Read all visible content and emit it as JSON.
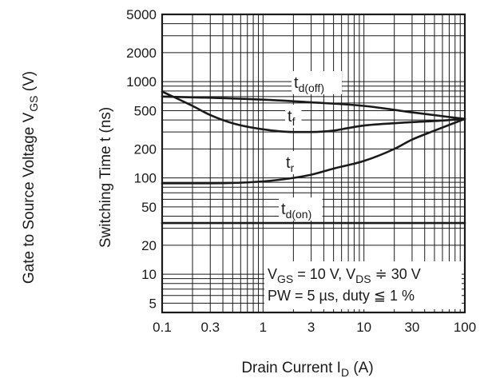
{
  "chart_data": {
    "type": "line",
    "x_scale": "log",
    "y_scale": "log",
    "xlim": [
      0.1,
      100
    ],
    "ylim": [
      4,
      5000
    ],
    "grid": true,
    "x_ticks": [
      "0.1",
      "0.3",
      "1",
      "3",
      "10",
      "30",
      "100"
    ],
    "y_ticks": [
      "5000",
      "2000",
      "1000",
      "500",
      "200",
      "100",
      "50",
      "20",
      "10",
      "5"
    ],
    "xlabel": {
      "main": "Drain Current  I",
      "sub": "D",
      "unit": "  (A)"
    },
    "ylabel": {
      "main": "Switching Time  t  (ns)"
    },
    "ylabel_outer": {
      "main": "Gate to Source Voltage  V",
      "sub": "GS",
      "unit": "  (V)"
    },
    "series": [
      {
        "name": "td(off)",
        "label_main": "t",
        "label_sub": "d(off)",
        "x": [
          0.1,
          0.3,
          1,
          3,
          10,
          30,
          100
        ],
        "y": [
          700,
          680,
          650,
          610,
          560,
          480,
          410
        ]
      },
      {
        "name": "tf",
        "label_main": "t",
        "label_sub": "f",
        "x": [
          0.1,
          0.2,
          0.3,
          0.5,
          1,
          2,
          3,
          5,
          7,
          10,
          20,
          30,
          50,
          100
        ],
        "y": [
          790,
          560,
          450,
          370,
          320,
          300,
          300,
          310,
          330,
          350,
          370,
          380,
          390,
          410
        ]
      },
      {
        "name": "tr",
        "label_main": "t",
        "label_sub": "r",
        "x": [
          0.1,
          0.3,
          1,
          2,
          3,
          5,
          10,
          20,
          30,
          50,
          100
        ],
        "y": [
          88,
          88,
          92,
          100,
          108,
          125,
          150,
          200,
          250,
          310,
          410
        ]
      },
      {
        "name": "td(on)",
        "label_main": "t",
        "label_sub": "d(on)",
        "x": [
          0.1,
          100
        ],
        "y": [
          34,
          34
        ]
      }
    ],
    "conditions": {
      "line1": {
        "a": "V",
        "a_sub": "GS",
        "b": " = 10 V, V",
        "b_sub": "DS",
        "c": " ≑ 30 V"
      },
      "line2": {
        "a": "PW = 5 µs, duty ",
        "b": "≦",
        "c": " 1 %"
      }
    }
  }
}
